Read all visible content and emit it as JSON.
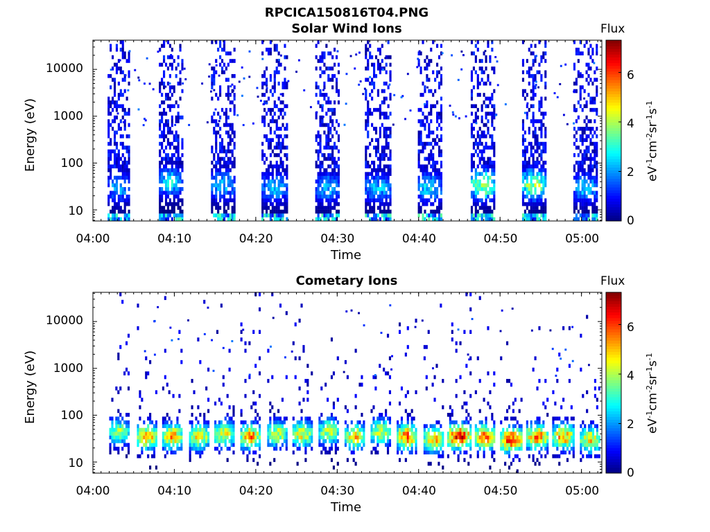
{
  "figure_title": "RPCICA150816T04.PNG",
  "colorbar": {
    "title": "Flux",
    "label_main": "eV",
    "label_sup1": "-1",
    "label_mid": "cm",
    "label_sup2": "-2",
    "label_mid2": "sr",
    "label_sup3": "-1",
    "label_mid3": "s",
    "label_sup4": "-1",
    "ticks": [
      "0",
      "2",
      "4",
      "6"
    ],
    "range": [
      0,
      7.3
    ]
  },
  "chart_data": [
    {
      "type": "heatmap",
      "title": "Solar Wind Ions",
      "xlabel": "Time",
      "ylabel": "Energy (eV)",
      "x_ticks": [
        "04:00",
        "04:10",
        "04:20",
        "04:30",
        "04:40",
        "04:50",
        "05:00"
      ],
      "y_ticks": [
        "10",
        "100",
        "1000",
        "10000"
      ],
      "y_scale": "log",
      "xlim_minutes": [
        0,
        62.5
      ],
      "ylim": [
        5.8,
        42000
      ],
      "colorbar_range": [
        0,
        7.3
      ],
      "bursts": [
        {
          "center_min": 3.2,
          "width_min": 2.8,
          "peak_flux": 2.5,
          "peak_energy": 30
        },
        {
          "center_min": 9.6,
          "width_min": 3.0,
          "peak_flux": 3.0,
          "peak_energy": 40
        },
        {
          "center_min": 16.0,
          "width_min": 3.0,
          "peak_flux": 2.8,
          "peak_energy": 35
        },
        {
          "center_min": 22.3,
          "width_min": 3.2,
          "peak_flux": 2.6,
          "peak_energy": 30
        },
        {
          "center_min": 28.8,
          "width_min": 3.0,
          "peak_flux": 2.6,
          "peak_energy": 30
        },
        {
          "center_min": 35.0,
          "width_min": 3.2,
          "peak_flux": 2.6,
          "peak_energy": 30
        },
        {
          "center_min": 41.4,
          "width_min": 3.0,
          "peak_flux": 3.0,
          "peak_energy": 30
        },
        {
          "center_min": 47.9,
          "width_min": 3.0,
          "peak_flux": 4.8,
          "peak_energy": 35
        },
        {
          "center_min": 54.2,
          "width_min": 3.0,
          "peak_flux": 4.6,
          "peak_energy": 35
        },
        {
          "center_min": 60.5,
          "width_min": 3.0,
          "peak_flux": 2.8,
          "peak_energy": 30
        }
      ]
    },
    {
      "type": "heatmap",
      "title": "Cometary Ions",
      "xlabel": "Time",
      "ylabel": "Energy (eV)",
      "x_ticks": [
        "04:00",
        "04:10",
        "04:20",
        "04:30",
        "04:40",
        "04:50",
        "05:00"
      ],
      "y_ticks": [
        "10",
        "100",
        "1000",
        "10000"
      ],
      "y_scale": "log",
      "xlim_minutes": [
        0,
        62.5
      ],
      "ylim": [
        5.8,
        42000
      ],
      "colorbar_range": [
        0,
        7.3
      ],
      "bursts": [
        {
          "center_min": 3.3,
          "width_min": 2.6,
          "peak_flux": 4.2,
          "peak_energy": 45
        },
        {
          "center_min": 6.6,
          "width_min": 2.4,
          "peak_flux": 5.6,
          "peak_energy": 35
        },
        {
          "center_min": 9.8,
          "width_min": 2.6,
          "peak_flux": 5.6,
          "peak_energy": 35
        },
        {
          "center_min": 13.0,
          "width_min": 2.4,
          "peak_flux": 5.2,
          "peak_energy": 35
        },
        {
          "center_min": 16.2,
          "width_min": 2.6,
          "peak_flux": 5.0,
          "peak_energy": 40
        },
        {
          "center_min": 19.4,
          "width_min": 2.6,
          "peak_flux": 5.8,
          "peak_energy": 35
        },
        {
          "center_min": 22.6,
          "width_min": 2.4,
          "peak_flux": 4.6,
          "peak_energy": 40
        },
        {
          "center_min": 25.8,
          "width_min": 2.6,
          "peak_flux": 5.0,
          "peak_energy": 40
        },
        {
          "center_min": 29.0,
          "width_min": 2.6,
          "peak_flux": 4.6,
          "peak_energy": 45
        },
        {
          "center_min": 32.2,
          "width_min": 2.6,
          "peak_flux": 5.2,
          "peak_energy": 35
        },
        {
          "center_min": 35.4,
          "width_min": 2.6,
          "peak_flux": 4.6,
          "peak_energy": 45
        },
        {
          "center_min": 38.6,
          "width_min": 2.6,
          "peak_flux": 6.0,
          "peak_energy": 35
        },
        {
          "center_min": 41.8,
          "width_min": 2.4,
          "peak_flux": 5.4,
          "peak_energy": 30
        },
        {
          "center_min": 45.0,
          "width_min": 3.0,
          "peak_flux": 6.8,
          "peak_energy": 35
        },
        {
          "center_min": 48.2,
          "width_min": 2.6,
          "peak_flux": 6.2,
          "peak_energy": 35
        },
        {
          "center_min": 51.4,
          "width_min": 2.8,
          "peak_flux": 6.6,
          "peak_energy": 30
        },
        {
          "center_min": 54.6,
          "width_min": 2.8,
          "peak_flux": 6.0,
          "peak_energy": 35
        },
        {
          "center_min": 57.8,
          "width_min": 2.8,
          "peak_flux": 5.6,
          "peak_energy": 35
        },
        {
          "center_min": 61.0,
          "width_min": 2.4,
          "peak_flux": 5.2,
          "peak_energy": 30
        }
      ]
    }
  ]
}
